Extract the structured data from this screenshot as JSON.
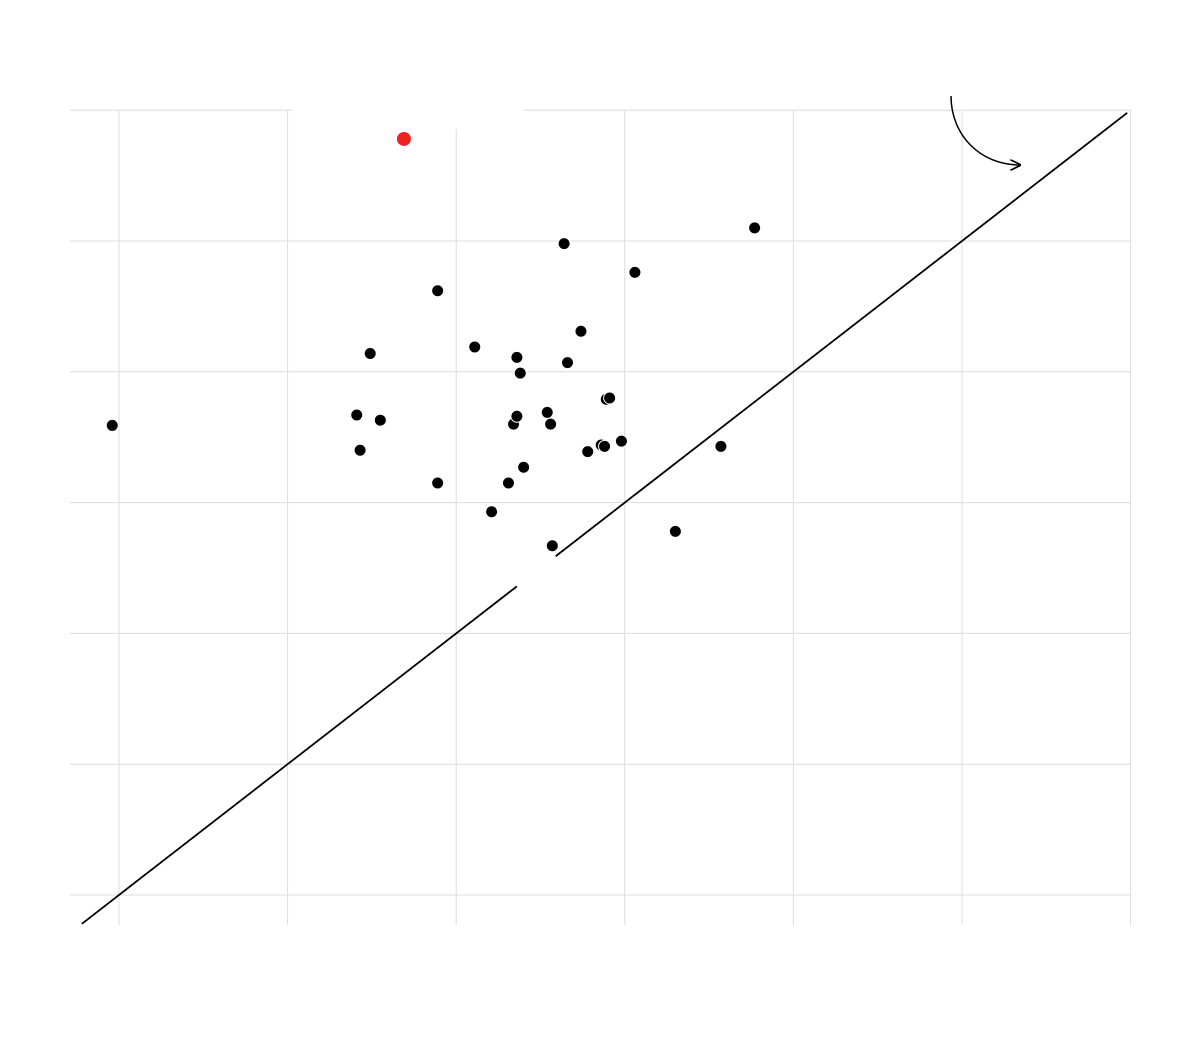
{
  "chart_data": {
    "type": "scatter",
    "title": "",
    "xlabel": "",
    "ylabel": "",
    "grid": true,
    "xlim": [
      -0.5,
      5.95
    ],
    "ylim": [
      -0.2,
      6.0
    ],
    "x_gridlines": [
      0,
      1,
      2,
      3,
      4,
      5,
      6
    ],
    "y_gridlines": [
      0,
      1,
      2,
      3,
      4,
      5,
      6
    ],
    "colors": {
      "point": "#000000",
      "highlight": "#ee2222",
      "line": "#000000",
      "grid": "#dcdcdc"
    },
    "reference_line": {
      "type": "identity",
      "from": [
        -0.22,
        -0.22
      ],
      "to": [
        5.98,
        5.98
      ],
      "gap": [
        2.36,
        2.59
      ]
    },
    "annotation": {
      "type": "curved-arrow",
      "pointing_to": "reference_line"
    },
    "series": [
      {
        "name": "",
        "color": "#000000",
        "points": [
          [
            -0.04,
            3.59
          ],
          [
            1.41,
            3.67
          ],
          [
            1.43,
            3.4
          ],
          [
            1.49,
            4.14
          ],
          [
            1.55,
            3.63
          ],
          [
            1.89,
            3.15
          ],
          [
            1.89,
            4.62
          ],
          [
            2.11,
            4.19
          ],
          [
            2.21,
            2.93
          ],
          [
            2.31,
            3.15
          ],
          [
            2.34,
            3.6
          ],
          [
            2.36,
            3.66
          ],
          [
            2.36,
            4.11
          ],
          [
            2.38,
            3.99
          ],
          [
            2.4,
            3.27
          ],
          [
            2.54,
            3.69
          ],
          [
            2.56,
            3.6
          ],
          [
            2.57,
            2.67
          ],
          [
            2.64,
            4.98
          ],
          [
            2.66,
            4.07
          ],
          [
            2.74,
            4.31
          ],
          [
            2.78,
            3.39
          ],
          [
            2.86,
            3.44
          ],
          [
            2.88,
            3.43
          ],
          [
            2.89,
            3.79
          ],
          [
            2.91,
            3.8
          ],
          [
            2.98,
            3.47
          ],
          [
            3.06,
            4.76
          ],
          [
            3.3,
            2.78
          ],
          [
            3.57,
            3.43
          ],
          [
            3.77,
            5.1
          ]
        ]
      },
      {
        "name": "",
        "color": "#ee2222",
        "points": [
          [
            1.69,
            5.78
          ]
        ]
      }
    ]
  }
}
